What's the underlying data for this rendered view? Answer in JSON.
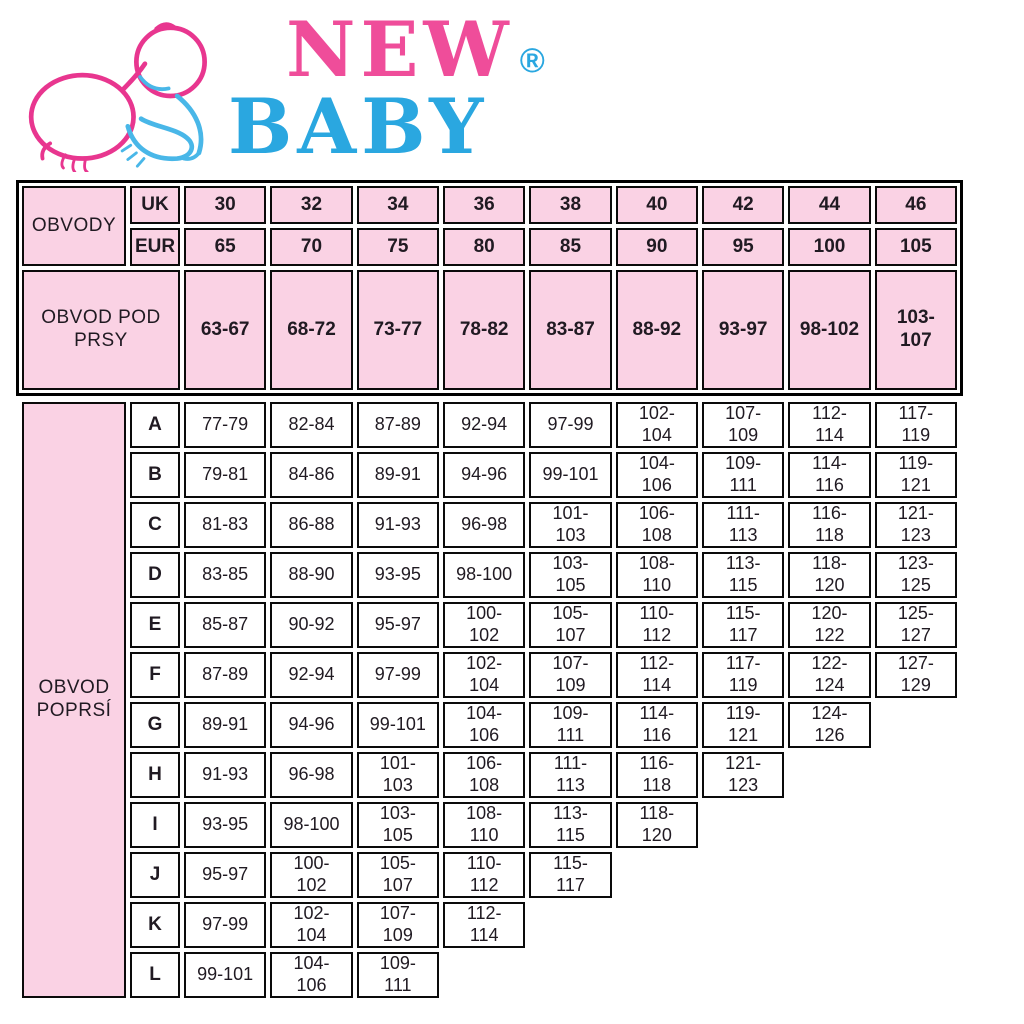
{
  "logo": {
    "brand_line1": "NEW",
    "brand_line2": "BABY",
    "registered_mark": "®",
    "colors": {
      "pink": "#ef4d9a",
      "blue": "#2aa7e0"
    }
  },
  "table": {
    "colors": {
      "header_bg": "#fad2e4",
      "body_bg": "#ffffff",
      "border": "#000000",
      "text": "#201a22"
    },
    "header": {
      "obvody_label": "OBVODY",
      "uk_label": "UK",
      "eur_label": "EUR",
      "uk_sizes": [
        "30",
        "32",
        "34",
        "36",
        "38",
        "40",
        "42",
        "44",
        "46"
      ],
      "eur_sizes": [
        "65",
        "70",
        "75",
        "80",
        "85",
        "90",
        "95",
        "100",
        "105"
      ],
      "underbust_label": "OBVOD POD\nPRSY",
      "underbust_ranges": [
        "63-67",
        "68-72",
        "73-77",
        "78-82",
        "83-87",
        "88-92",
        "93-97",
        "98-102",
        "103-\n107"
      ]
    },
    "body": {
      "bust_label": "OBVOD\nPOPRSÍ",
      "rows": [
        {
          "cup": "A",
          "values": [
            "77-79",
            "82-84",
            "87-89",
            "92-94",
            "97-99",
            "102-\n104",
            "107-\n109",
            "112-\n114",
            "117-\n119"
          ]
        },
        {
          "cup": "B",
          "values": [
            "79-81",
            "84-86",
            "89-91",
            "94-96",
            "99-101",
            "104-\n106",
            "109-\n111",
            "114-\n116",
            "119-\n121"
          ]
        },
        {
          "cup": "C",
          "values": [
            "81-83",
            "86-88",
            "91-93",
            "96-98",
            "101-\n103",
            "106-\n108",
            "111-\n113",
            "116-\n118",
            "121-\n123"
          ]
        },
        {
          "cup": "D",
          "values": [
            "83-85",
            "88-90",
            "93-95",
            "98-100",
            "103-\n105",
            "108-\n110",
            "113-\n115",
            "118-\n120",
            "123-\n125"
          ]
        },
        {
          "cup": "E",
          "values": [
            "85-87",
            "90-92",
            "95-97",
            "100-\n102",
            "105-\n107",
            "110-\n112",
            "115-\n117",
            "120-\n122",
            "125-\n127"
          ]
        },
        {
          "cup": "F",
          "values": [
            "87-89",
            "92-94",
            "97-99",
            "102-\n104",
            "107-\n109",
            "112-\n114",
            "117-\n119",
            "122-\n124",
            "127-\n129"
          ]
        },
        {
          "cup": "G",
          "values": [
            "89-91",
            "94-96",
            "99-101",
            "104-\n106",
            "109-\n111",
            "114-\n116",
            "119-\n121",
            "124-\n126"
          ]
        },
        {
          "cup": "H",
          "values": [
            "91-93",
            "96-98",
            "101-\n103",
            "106-\n108",
            "111-\n113",
            "116-\n118",
            "121-\n123"
          ]
        },
        {
          "cup": "I",
          "values": [
            "93-95",
            "98-100",
            "103-\n105",
            "108-\n110",
            "113-\n115",
            "118-\n120"
          ]
        },
        {
          "cup": "J",
          "values": [
            "95-97",
            "100-\n102",
            "105-\n107",
            "110-\n112",
            "115-\n117"
          ]
        },
        {
          "cup": "K",
          "values": [
            "97-99",
            "102-\n104",
            "107-\n109",
            "112-\n114"
          ]
        },
        {
          "cup": "L",
          "values": [
            "99-101",
            "104-\n106",
            "109-\n111"
          ]
        }
      ]
    }
  }
}
